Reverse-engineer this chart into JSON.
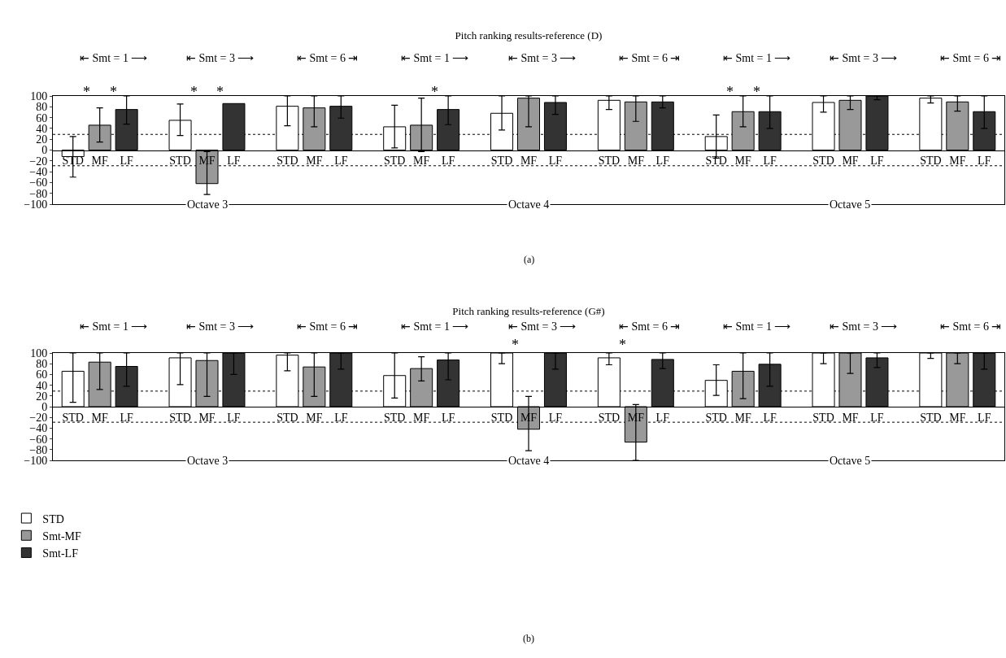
{
  "chart_data": [
    {
      "type": "bar",
      "title": "Pitch ranking results-reference (D)",
      "categories": [
        "STD",
        "MF",
        "LF",
        "STD",
        "MF",
        "LF",
        "STD",
        "MF",
        "LF",
        "STD",
        "MF",
        "LF",
        "STD",
        "MF",
        "LF",
        "STD",
        "MF",
        "LF",
        "STD",
        "MF",
        "LF",
        "STD",
        "MF",
        "LF",
        "STD",
        "MF",
        "LF"
      ],
      "series": [
        {
          "color": "#ffffff",
          "values": [
            -12,
            null,
            null,
            55,
            null,
            null,
            81,
            null,
            null,
            43,
            null,
            null,
            68,
            null,
            null,
            92,
            null,
            null,
            25,
            null,
            null,
            88,
            null,
            null,
            96,
            null,
            null
          ],
          "errors": [
            [
              -50,
              25
            ],
            null,
            null,
            [
              27,
              85
            ],
            null,
            null,
            [
              45,
              100
            ],
            null,
            null,
            [
              4,
              83
            ],
            null,
            null,
            [
              37,
              100
            ],
            null,
            null,
            [
              75,
              100
            ],
            null,
            null,
            [
              -15,
              65
            ],
            null,
            null,
            [
              70,
              100
            ],
            null,
            null,
            [
              87,
              100
            ],
            null,
            null
          ]
        },
        {
          "color": "#999999",
          "values": [
            null,
            46,
            null,
            null,
            -62,
            null,
            null,
            78,
            null,
            null,
            46,
            null,
            null,
            96,
            null,
            null,
            89,
            null,
            null,
            71,
            null,
            null,
            92,
            null,
            null,
            89,
            null
          ],
          "errors": [
            null,
            [
              15,
              78
            ],
            null,
            null,
            [
              -82,
              -3
            ],
            null,
            null,
            [
              43,
              100
            ],
            null,
            null,
            [
              -3,
              96
            ],
            null,
            null,
            [
              43,
              100
            ],
            null,
            null,
            [
              53,
              100
            ],
            null,
            null,
            [
              43,
              100
            ],
            null,
            null,
            [
              75,
              100
            ],
            null,
            null,
            [
              72,
              100
            ],
            null
          ]
        },
        {
          "color": "#333333",
          "values": [
            null,
            null,
            75,
            null,
            null,
            86,
            null,
            null,
            81,
            null,
            null,
            75,
            null,
            null,
            88,
            null,
            null,
            89,
            null,
            null,
            71,
            null,
            null,
            100,
            null,
            null,
            71
          ],
          "errors": [
            null,
            null,
            [
              48,
              100
            ],
            null,
            null,
            null,
            null,
            null,
            [
              59,
              100
            ],
            null,
            null,
            [
              47,
              100
            ],
            null,
            null,
            [
              66,
              100
            ],
            null,
            null,
            [
              78,
              100
            ],
            null,
            null,
            [
              40,
              100
            ],
            null,
            null,
            [
              93,
              100
            ],
            null,
            null,
            [
              40,
              100
            ]
          ]
        }
      ],
      "ylim": [
        -100,
        100
      ],
      "yticks": [
        -100,
        -80,
        -60,
        -40,
        -20,
        0,
        20,
        40,
        60,
        80,
        100
      ],
      "ref_lines": [
        {
          "axis": "y",
          "value": 29,
          "color": "#000000",
          "line_style": "dotted"
        },
        {
          "axis": "y",
          "value": -29,
          "color": "#000000",
          "line_style": "dotted"
        }
      ],
      "grid": false,
      "legend": false,
      "annotations": [
        "⇤ Smt = 1 ⟶",
        "⇤ Smt = 3 ⟶",
        "⇤ Smt = 6 ⇥",
        "⇤ Smt = 1 ⟶",
        "⇤ Smt = 3 ⟶",
        "⇤ Smt = 6 ⇥",
        "⇤ Smt = 1 ⟶",
        "⇤ Smt = 3 ⟶",
        "⇤ Smt = 6 ⇥",
        "Octave 3",
        "Octave 4",
        "Octave 5",
        "*",
        "*",
        "*",
        "*",
        "*",
        "*",
        "*",
        "(a)"
      ]
    },
    {
      "type": "bar",
      "title": "Pitch ranking results-reference (G#)",
      "categories": [
        "STD",
        "MF",
        "LF",
        "STD",
        "MF",
        "LF",
        "STD",
        "MF",
        "LF",
        "STD",
        "MF",
        "LF",
        "STD",
        "MF",
        "LF",
        "STD",
        "MF",
        "LF",
        "STD",
        "MF",
        "LF",
        "STD",
        "MF",
        "LF",
        "STD",
        "MF",
        "LF"
      ],
      "series": [
        {
          "name": "STD",
          "color": "#ffffff",
          "values": [
            66,
            null,
            null,
            91,
            null,
            null,
            96,
            null,
            null,
            58,
            null,
            null,
            100,
            null,
            null,
            91,
            null,
            null,
            49,
            null,
            null,
            100,
            null,
            null,
            100,
            null,
            null
          ],
          "errors": [
            [
              8,
              100
            ],
            null,
            null,
            [
              41,
              100
            ],
            null,
            null,
            [
              67,
              100
            ],
            null,
            null,
            [
              16,
              100
            ],
            null,
            null,
            [
              80,
              100
            ],
            null,
            null,
            [
              78,
              100
            ],
            null,
            null,
            [
              21,
              78
            ],
            null,
            null,
            [
              80,
              100
            ],
            null,
            null,
            [
              90,
              100
            ],
            null,
            null
          ]
        },
        {
          "name": "Smt-MF",
          "color": "#999999",
          "values": [
            null,
            83,
            null,
            null,
            86,
            null,
            null,
            74,
            null,
            null,
            71,
            null,
            null,
            -42,
            null,
            null,
            -66,
            null,
            null,
            66,
            null,
            null,
            100,
            null,
            null,
            100,
            null
          ],
          "errors": [
            null,
            [
              32,
              100
            ],
            null,
            null,
            [
              19,
              100
            ],
            null,
            null,
            [
              19,
              100
            ],
            null,
            null,
            [
              48,
              93
            ],
            null,
            null,
            [
              -82,
              19
            ],
            null,
            null,
            [
              -100,
              4
            ],
            null,
            null,
            [
              15,
              100
            ],
            null,
            null,
            [
              62,
              100
            ],
            null,
            null,
            [
              80,
              100
            ],
            null
          ]
        },
        {
          "name": "Smt-LF",
          "color": "#333333",
          "values": [
            null,
            null,
            75,
            null,
            null,
            100,
            null,
            null,
            100,
            null,
            null,
            87,
            null,
            null,
            100,
            null,
            null,
            88,
            null,
            null,
            79,
            null,
            null,
            91,
            null,
            null,
            100
          ],
          "errors": [
            null,
            null,
            [
              38,
              100
            ],
            null,
            null,
            [
              60,
              100
            ],
            null,
            null,
            [
              70,
              100
            ],
            null,
            null,
            [
              50,
              100
            ],
            null,
            null,
            [
              70,
              100
            ],
            null,
            null,
            [
              71,
              100
            ],
            null,
            null,
            [
              38,
              100
            ],
            null,
            null,
            [
              73,
              100
            ],
            null,
            null,
            [
              70,
              100
            ]
          ]
        }
      ],
      "ylim": [
        -100,
        100
      ],
      "yticks": [
        -100,
        -80,
        -60,
        -40,
        -20,
        0,
        20,
        40,
        60,
        80,
        100
      ],
      "ref_lines": [
        {
          "axis": "y",
          "value": 29,
          "color": "#000000",
          "line_style": "dotted"
        },
        {
          "axis": "y",
          "value": -29,
          "color": "#000000",
          "line_style": "dotted"
        }
      ],
      "grid": false,
      "legend": "bottom left",
      "annotations": [
        "⇤ Smt = 1 ⟶",
        "⇤ Smt = 3 ⟶",
        "⇤ Smt = 6 ⇥",
        "⇤ Smt = 1 ⟶",
        "⇤ Smt = 3 ⟶",
        "⇤ Smt = 6 ⇥",
        "⇤ Smt = 1 ⟶",
        "⇤ Smt = 3 ⟶",
        "⇤ Smt = 6 ⇥",
        "Octave 3",
        "Octave 4",
        "Octave 5",
        "*",
        "*",
        "(b)"
      ]
    }
  ]
}
